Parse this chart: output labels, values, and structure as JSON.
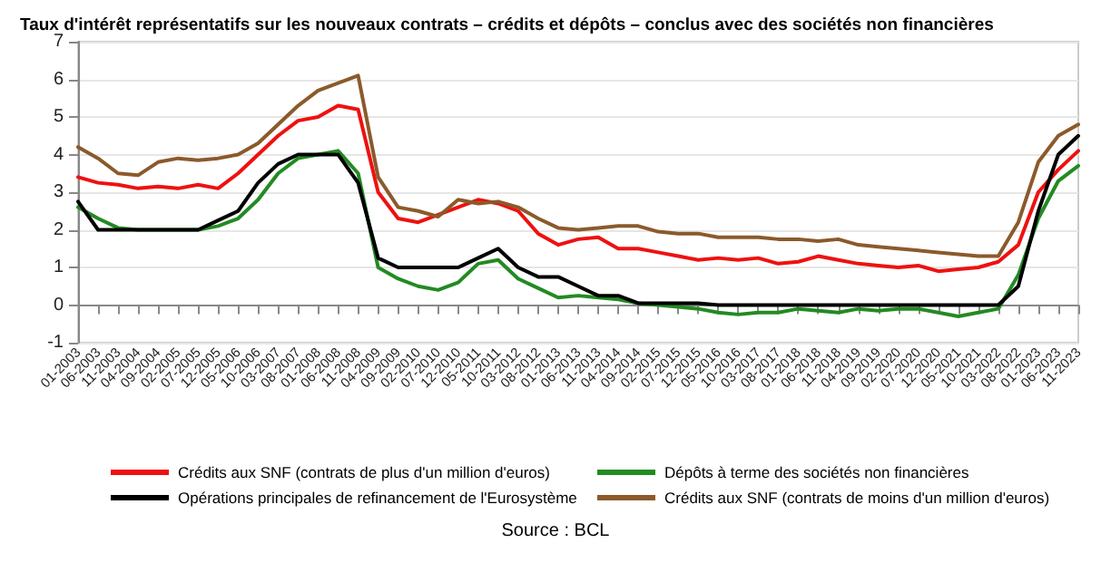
{
  "chart_data": {
    "type": "line",
    "title": "Taux d'intérêt représentatifs sur les nouveaux contrats – crédits et dépôts – conclus avec des sociétés non financières",
    "annotations": [
      "Source : BCL"
    ],
    "categories": [
      "01-2003",
      "06-2003",
      "11-2003",
      "04-2004",
      "09-2004",
      "02-2005",
      "07-2005",
      "12-2005",
      "05-2006",
      "10-2006",
      "03-2007",
      "08-2007",
      "01-2008",
      "06-2008",
      "11-2008",
      "04-2009",
      "09-2009",
      "02-2010",
      "07-2010",
      "12-2010",
      "05-2011",
      "10-2011",
      "03-2012",
      "08-2012",
      "01-2013",
      "06-2013",
      "11-2013",
      "04-2014",
      "09-2014",
      "02-2015",
      "07-2015",
      "12-2015",
      "05-2016",
      "10-2016",
      "03-2017",
      "08-2017",
      "01-2018",
      "06-2018",
      "11-2018",
      "04-2019",
      "09-2019",
      "02-2020",
      "07-2020",
      "12-2020",
      "05-2021",
      "10-2021",
      "03-2022",
      "08-2022",
      "01-2023",
      "06-2023",
      "11-2023"
    ],
    "series": [
      {
        "name": "Crédits aux SNF (contrats de plus d'un million d'euros)",
        "color": "#ee1111",
        "values": [
          3.4,
          3.25,
          3.2,
          3.1,
          3.15,
          3.1,
          3.2,
          3.1,
          3.5,
          4.0,
          4.5,
          4.9,
          5.0,
          5.3,
          5.2,
          3.0,
          2.3,
          2.2,
          2.4,
          2.6,
          2.8,
          2.7,
          2.5,
          1.9,
          1.6,
          1.75,
          1.8,
          1.5,
          1.5,
          1.4,
          1.3,
          1.2,
          1.25,
          1.2,
          1.25,
          1.1,
          1.15,
          1.3,
          1.2,
          1.1,
          1.05,
          1.0,
          1.05,
          0.9,
          0.95,
          1.0,
          1.15,
          1.6,
          3.0,
          3.6,
          4.1
        ]
      },
      {
        "name": "Dépôts à terme des sociétés non financières",
        "color": "#228b22",
        "values": [
          2.6,
          2.3,
          2.05,
          2.0,
          2.0,
          2.0,
          2.0,
          2.1,
          2.3,
          2.8,
          3.5,
          3.9,
          4.0,
          4.1,
          3.5,
          1.0,
          0.7,
          0.5,
          0.4,
          0.6,
          1.1,
          1.2,
          0.7,
          0.45,
          0.2,
          0.25,
          0.2,
          0.15,
          0.05,
          0.0,
          -0.05,
          -0.1,
          -0.2,
          -0.25,
          -0.2,
          -0.2,
          -0.1,
          -0.15,
          -0.2,
          -0.1,
          -0.15,
          -0.1,
          -0.1,
          -0.2,
          -0.3,
          -0.2,
          -0.1,
          0.8,
          2.3,
          3.3,
          3.7
        ]
      },
      {
        "name": "Opérations principales de refinancement de l'Eurosystème",
        "color": "#000000",
        "values": [
          2.75,
          2.0,
          2.0,
          2.0,
          2.0,
          2.0,
          2.0,
          2.25,
          2.5,
          3.25,
          3.75,
          4.0,
          4.0,
          4.0,
          3.25,
          1.25,
          1.0,
          1.0,
          1.0,
          1.0,
          1.25,
          1.5,
          1.0,
          0.75,
          0.75,
          0.5,
          0.25,
          0.25,
          0.05,
          0.05,
          0.05,
          0.05,
          0.0,
          0.0,
          0.0,
          0.0,
          0.0,
          0.0,
          0.0,
          0.0,
          0.0,
          0.0,
          0.0,
          0.0,
          0.0,
          0.0,
          0.0,
          0.5,
          2.5,
          4.0,
          4.5
        ]
      },
      {
        "name": "Crédits aux SNF (contrats de moins d'un million d'euros)",
        "color": "#8b5a2b",
        "values": [
          4.2,
          3.9,
          3.5,
          3.45,
          3.8,
          3.9,
          3.85,
          3.9,
          4.0,
          4.3,
          4.8,
          5.3,
          5.7,
          5.9,
          6.1,
          3.4,
          2.6,
          2.5,
          2.35,
          2.8,
          2.7,
          2.75,
          2.6,
          2.3,
          2.05,
          2.0,
          2.05,
          2.1,
          2.1,
          1.95,
          1.9,
          1.9,
          1.8,
          1.8,
          1.8,
          1.75,
          1.75,
          1.7,
          1.75,
          1.6,
          1.55,
          1.5,
          1.45,
          1.4,
          1.35,
          1.3,
          1.3,
          2.2,
          3.8,
          4.5,
          4.8
        ]
      }
    ],
    "ylim": [
      -1,
      7
    ],
    "yticks": [
      -1,
      0,
      1,
      2,
      3,
      4,
      5,
      6,
      7
    ],
    "grid": "y",
    "legend": "bottom",
    "marker": "none",
    "line_style": "solid"
  }
}
